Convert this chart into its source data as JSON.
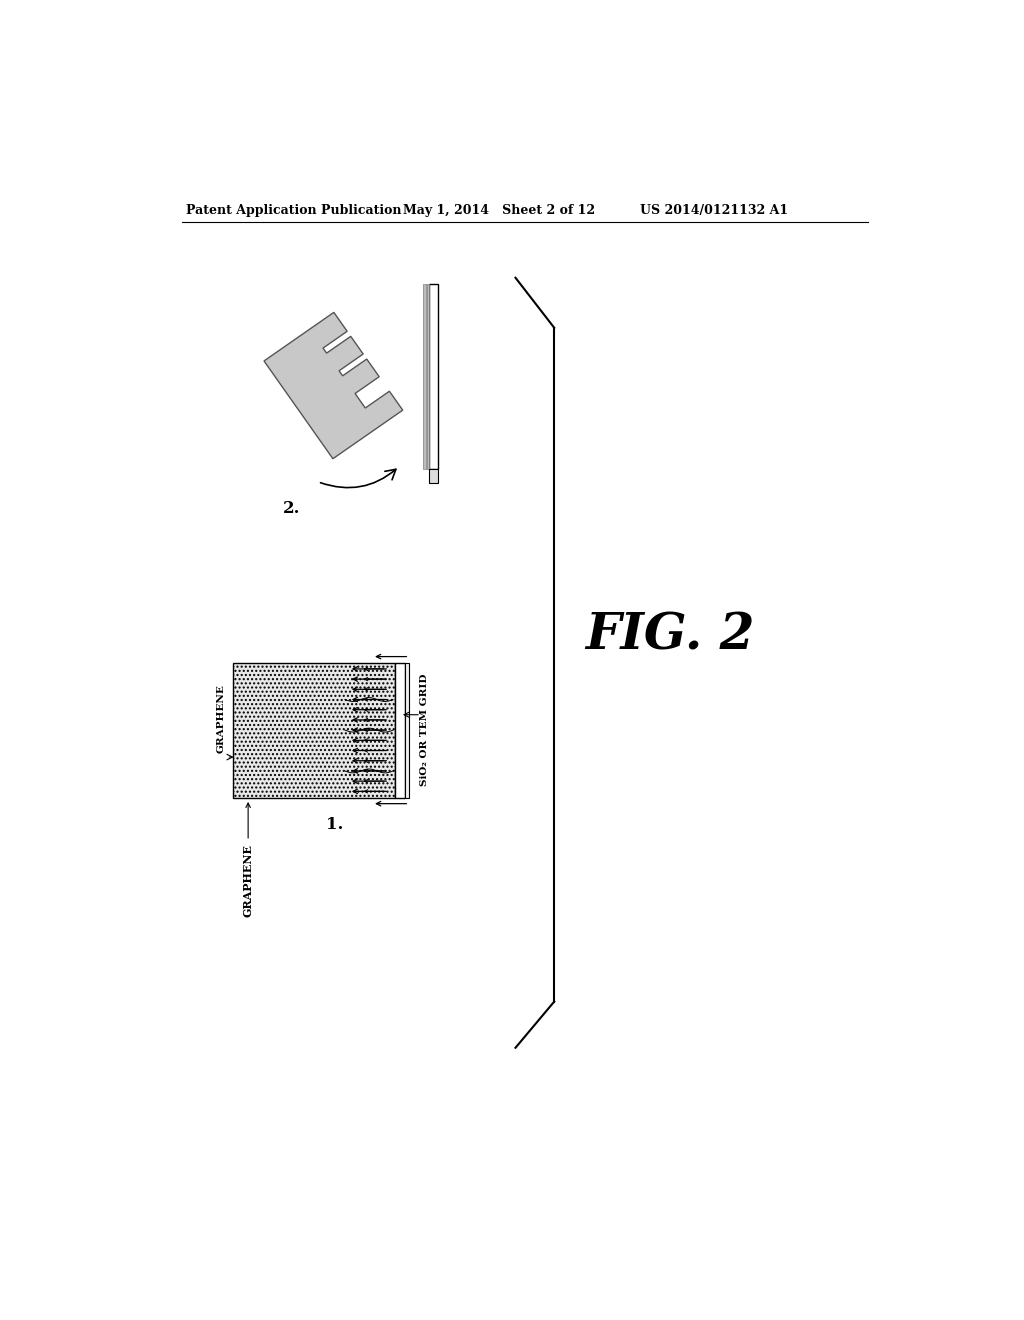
{
  "background_color": "#ffffff",
  "header_left": "Patent Application Publication",
  "header_mid": "May 1, 2014   Sheet 2 of 12",
  "header_right": "US 2014/0121132 A1",
  "fig_label": "FIG. 2",
  "label_1": "1.",
  "label_2": "2.",
  "graphene_label": "GRAPHENE",
  "sio2_label": "SiO₂ OR TEM GRID"
}
